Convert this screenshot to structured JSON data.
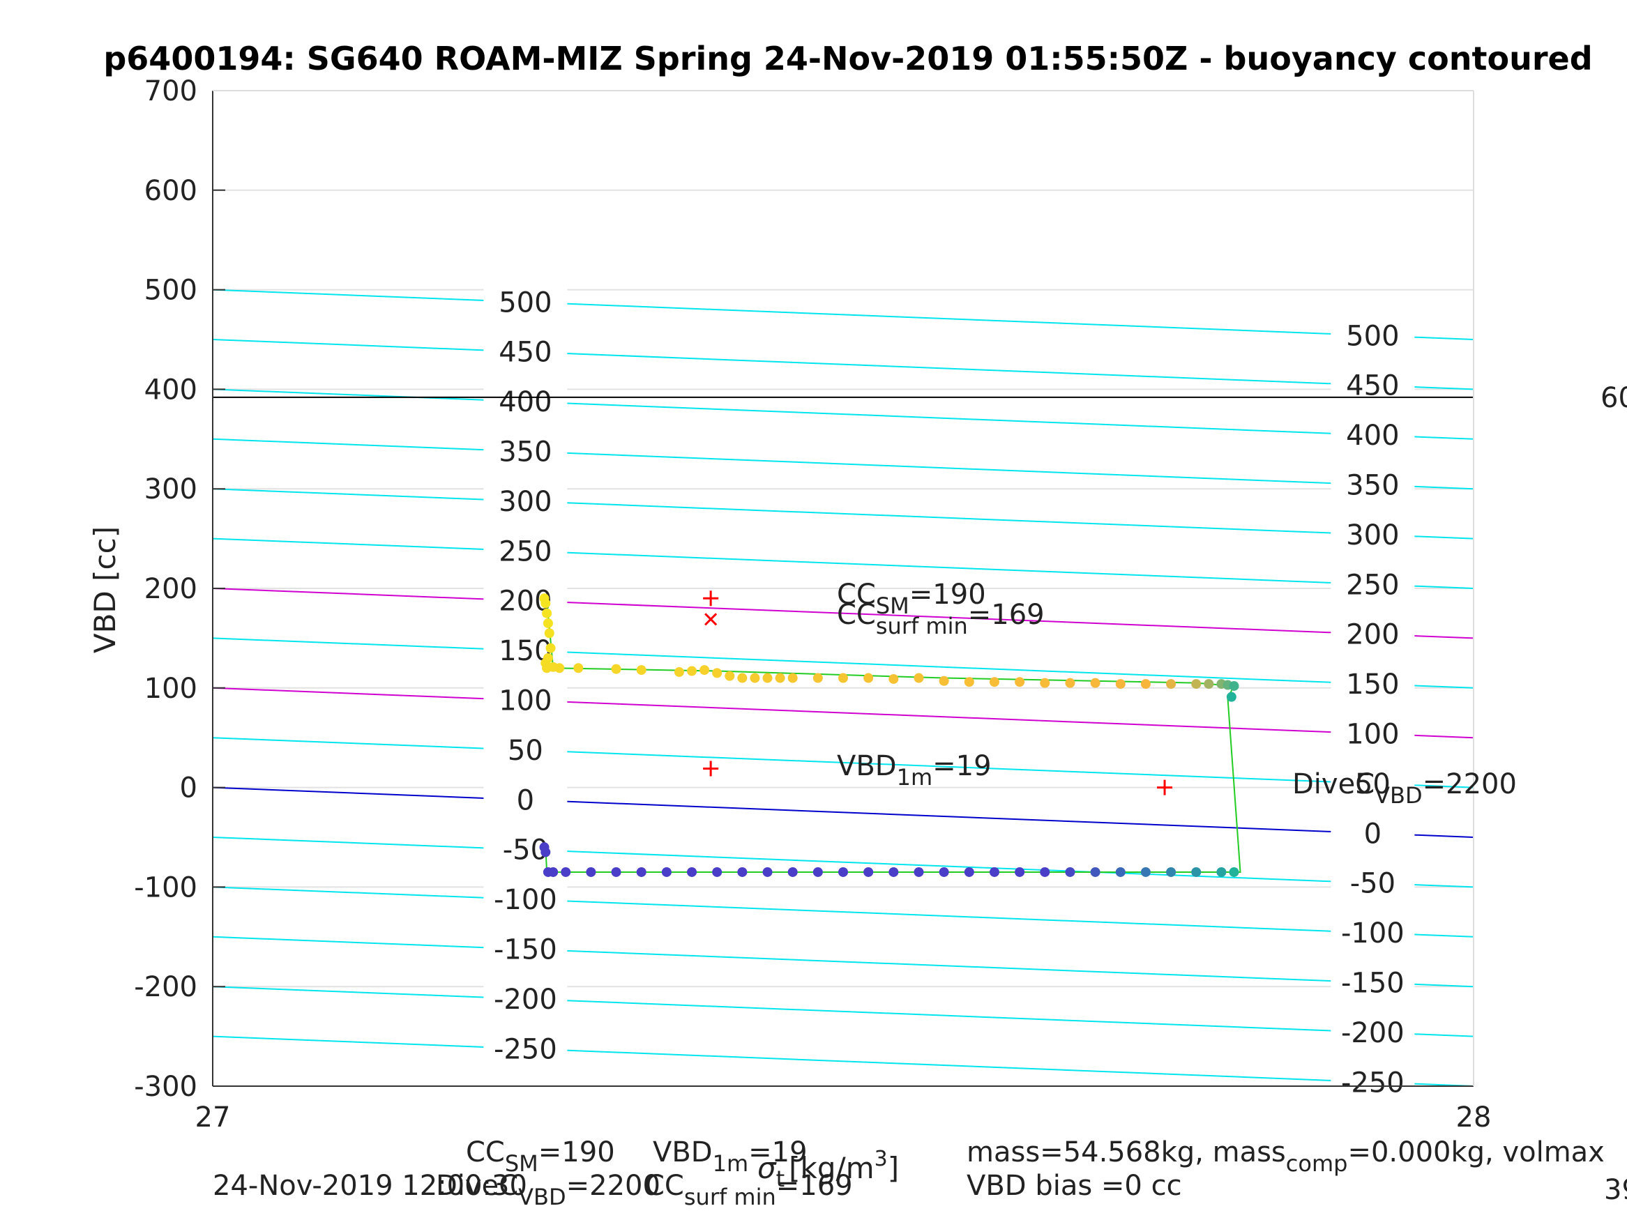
{
  "chart_data": {
    "type": "scatter",
    "title": "p6400194: SG640 ROAM-MIZ Spring 24-Nov-2019 01:55:50Z - buoyancy contoured",
    "xlabel": "σ_t [kg/m^3]",
    "ylabel": "VBD [cc]",
    "xlim": [
      27,
      28
    ],
    "ylim": [
      -300,
      700
    ],
    "xticks": [
      27,
      28
    ],
    "yticks": [
      -300,
      -200,
      -100,
      0,
      100,
      200,
      300,
      400,
      500,
      600,
      700
    ],
    "grid": true,
    "contours": {
      "levels": [
        -250,
        -200,
        -150,
        -100,
        -50,
        0,
        50,
        100,
        150,
        200,
        250,
        300,
        350,
        400,
        450,
        500
      ],
      "slope_cc_per_unit": -50,
      "left_labels": [
        "500",
        "450",
        "400",
        "350",
        "300",
        "250",
        "200",
        "150",
        "100",
        "50",
        "0",
        "-50",
        "-100",
        "-150",
        "-200",
        "-250"
      ],
      "right_labels": [
        "500",
        "450",
        "400",
        "350",
        "300",
        "250",
        "200",
        "150",
        "100",
        "50",
        "0",
        "-50",
        "-100",
        "-150",
        "-200",
        "-250"
      ],
      "colors": {
        "normal": "#00e5ee",
        "highlight": "#d000d0",
        "zero": "#0000cc"
      },
      "highlight_levels": [
        100,
        200
      ],
      "zero_level": 0
    },
    "reference_line_vbd": 392,
    "dive_track": {
      "color": "#22cc22",
      "points": [
        [
          27.265,
          188
        ],
        [
          27.27,
          120
        ],
        [
          27.4,
          117
        ],
        [
          27.58,
          110
        ],
        [
          27.78,
          105
        ],
        [
          27.81,
          102
        ],
        [
          27.805,
          90
        ],
        [
          27.815,
          -85
        ],
        [
          27.265,
          -85
        ],
        [
          27.264,
          -60
        ]
      ]
    },
    "climb_points": {
      "color_start": "#f5e61f",
      "color_mid": "#f7b43c",
      "color_end": "#21b29a",
      "x": [
        27.263,
        27.264,
        27.265,
        27.266,
        27.267,
        27.268,
        27.266,
        27.264,
        27.265,
        27.27,
        27.275,
        27.29,
        27.32,
        27.34,
        27.37,
        27.38,
        27.39,
        27.4,
        27.41,
        27.42,
        27.43,
        27.44,
        27.45,
        27.46,
        27.48,
        27.5,
        27.52,
        27.54,
        27.56,
        27.58,
        27.6,
        27.62,
        27.64,
        27.66,
        27.68,
        27.7,
        27.72,
        27.74,
        27.76,
        27.78,
        27.79,
        27.8,
        27.805,
        27.81,
        27.808
      ],
      "y": [
        190,
        185,
        175,
        165,
        155,
        140,
        130,
        125,
        120,
        121,
        120,
        120,
        119,
        118,
        116,
        117,
        118,
        115,
        112,
        110,
        110,
        110,
        110,
        110,
        110,
        110,
        110,
        109,
        110,
        107,
        106,
        106,
        106,
        105,
        105,
        105,
        104,
        104,
        104,
        104,
        104,
        104,
        103,
        102,
        91
      ]
    },
    "dive_points": {
      "color_start": "#4a3dc8",
      "color_end": "#21b29a",
      "x": [
        27.263,
        27.264,
        27.266,
        27.27,
        27.28,
        27.3,
        27.32,
        27.34,
        27.36,
        27.38,
        27.4,
        27.42,
        27.44,
        27.46,
        27.48,
        27.5,
        27.52,
        27.54,
        27.56,
        27.58,
        27.6,
        27.62,
        27.64,
        27.66,
        27.68,
        27.7,
        27.72,
        27.74,
        27.76,
        27.78,
        27.8,
        27.81
      ],
      "y": [
        -60,
        -65,
        -85,
        -85,
        -85,
        -85,
        -85,
        -85,
        -85,
        -85,
        -85,
        -85,
        -85,
        -85,
        -85,
        -85,
        -85,
        -85,
        -85,
        -85,
        -85,
        -85,
        -85,
        -85,
        -85,
        -85,
        -85,
        -85,
        -85,
        -85,
        -85,
        -85
      ]
    },
    "markers": [
      {
        "shape": "plus",
        "x": 27.395,
        "y": 190,
        "color": "#ff0000"
      },
      {
        "shape": "x",
        "x": 27.395,
        "y": 169,
        "color": "#ff0000"
      },
      {
        "shape": "plus",
        "x": 27.395,
        "y": 19,
        "color": "#ff0000"
      },
      {
        "shape": "plus",
        "x": 27.755,
        "y": 0,
        "color": "#ff0000"
      }
    ],
    "annotations": {
      "cc_sm": {
        "main": "CC",
        "sub": "SM",
        "value": "=190"
      },
      "cc_surf_min": {
        "main": "CC",
        "sub": "surf min",
        "value": "=169"
      },
      "vbd_1m": {
        "main": "VBD",
        "sub": "1m",
        "value": "=19"
      },
      "dive_c_vbd": {
        "main": "DiveC",
        "sub": "VBD",
        "value": "=2200"
      },
      "right_edge_1": "60",
      "right_edge_2": "39"
    }
  },
  "footer": {
    "line1": {
      "cc_sm": {
        "main": "CC",
        "sub": "SM",
        "value": "=190"
      },
      "vbd_1m": {
        "main": "VBD",
        "sub": "1m",
        "value": "=19"
      },
      "mass": "mass=54.568kg, mass",
      "mass_sub": "comp",
      "mass_rest": "=0.000kg, volmax"
    },
    "line2": {
      "date": "24-Nov-2019 12:00:30",
      "dive_c_vbd": {
        "main": "DiveC",
        "sub": "VBD",
        "value": "=2200"
      },
      "cc_surf_min": {
        "main": "CC",
        "sub": "surf min",
        "value": "=169"
      },
      "vbd_bias": "VBD bias =0 cc"
    },
    "xlabel_overlap": {
      "sigma": "σ",
      "sub": "t",
      "unit": "[kg/m",
      "sup": "3",
      "close": "]"
    }
  }
}
